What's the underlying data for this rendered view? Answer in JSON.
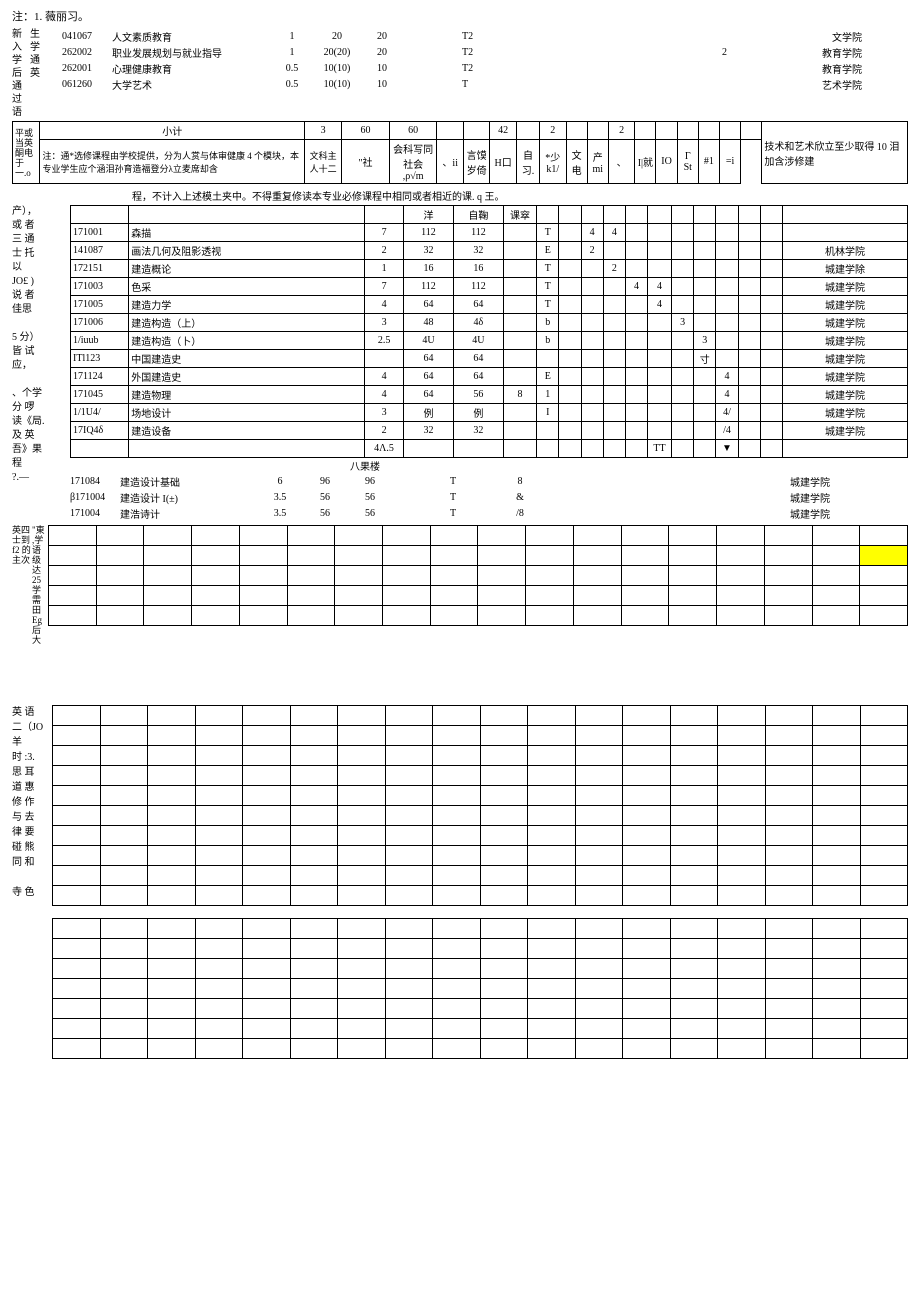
{
  "top_note": "注：1. 薇丽习。",
  "side_text_1": "新入学后通过语",
  "side_text_2": "生学通英",
  "loose_rows": [
    {
      "code": "041067",
      "name": "人文素质教育",
      "cr": "1",
      "h1": "20",
      "h2": "20",
      "exam": "T2",
      "extra": "",
      "dept": "文学院"
    },
    {
      "code": "262002",
      "name": "职业发展规划与就业指导",
      "cr": "1",
      "h1": "20(20)",
      "h2": "20",
      "exam": "T2",
      "extra": "2",
      "dept": "教育学院"
    },
    {
      "code": "262001",
      "name": "心理健康教育",
      "cr": "0.5",
      "h1": "10(10)",
      "h2": "10",
      "exam": "T2",
      "extra": "",
      "dept": "教育学院"
    },
    {
      "code": "061260",
      "name": "大学艺术",
      "cr": "0.5",
      "h1": "10(10)",
      "h2": "10",
      "exam": "T",
      "extra": "",
      "dept": "艺术学院"
    }
  ],
  "subtotal_row": {
    "left_vert": "平或当英 酮电于一.o",
    "label": "小计",
    "cr": "3",
    "h1": "60",
    "h2": "60",
    "n1": "42",
    "n2": "2",
    "n3": "2",
    "note": "注：通*选修课程由学校提供，分为人赏与体审健康 4 个模块，本专业学生应个涵泪孙育造福登分λ立麦席却含",
    "sub": "文科主人十二",
    "cols": [
      "\"社",
      "会科写同社会 ,ρ√m",
      "、ii",
      "言馍岁倚",
      "H口",
      "自习.",
      "*少k1/",
      "文电",
      "产mi",
      "、",
      "I|就",
      "IO",
      "Γ St",
      "#1",
      "=i"
    ],
    "right_note": "技术和艺术欣立至少取得 10 泪加含涉修建"
  },
  "mid_note": "程，不计入上述模土夹中。不得重复修读本专业必修课程中相同或者相近的课. q 王。",
  "left_stack_mid": [
    "产），",
    "或 者",
    "三 通",
    "士 托",
    "以",
    "JO£ )",
    "说 者",
    "佳思",
    "",
    "5 分）",
    "皆 试",
    "应，",
    "",
    "、个学",
    "分 啰",
    "读《局.",
    "及 英",
    "吾》果",
    "程",
    "?.—"
  ],
  "mid_header": [
    "",
    "洋",
    "自鞠",
    "课窣"
  ],
  "mid_rows": [
    {
      "code": "171001",
      "name": "森描",
      "cr": "7",
      "h1": "112",
      "h2": "112",
      "c": [
        "",
        "T",
        "",
        "4",
        "4",
        "",
        "",
        "",
        "",
        "",
        ""
      ],
      "dept": ""
    },
    {
      "code": "141087",
      "name": "画法几何及阻影透视",
      "cr": "2",
      "h1": "32",
      "h2": "32",
      "c": [
        "",
        "E",
        "",
        "2",
        "",
        "",
        "",
        "",
        "",
        "",
        ""
      ],
      "dept": "机林学院"
    },
    {
      "code": "172151",
      "name": "建造概论",
      "cr": "1",
      "h1": "16",
      "h2": "16",
      "c": [
        "",
        "T",
        "",
        "",
        "2",
        "",
        "",
        "",
        "",
        "",
        ""
      ],
      "dept": "城建学除"
    },
    {
      "code": "171003",
      "name": "色采",
      "cr": "7",
      "h1": "112",
      "h2": "112",
      "c": [
        "",
        "T",
        "",
        "",
        "",
        "4",
        "4",
        "",
        "",
        "",
        ""
      ],
      "dept": "城建学院"
    },
    {
      "code": "171005",
      "name": "建造力学",
      "cr": "4",
      "h1": "64",
      "h2": "64",
      "c": [
        "",
        "T",
        "",
        "",
        "",
        "",
        "4",
        "",
        "",
        "",
        ""
      ],
      "dept": "城建学院"
    },
    {
      "code": "171006",
      "name": "建造构造（上）",
      "cr": "3",
      "h1": "48",
      "h2": "4δ",
      "c": [
        "",
        "b",
        "",
        "",
        "",
        "",
        "",
        "3",
        "",
        "",
        ""
      ],
      "dept": "城建学院"
    },
    {
      "code": "1/iuub",
      "name": "建造构造（卜）",
      "cr": "2.5",
      "h1": "4U",
      "h2": "4U",
      "c": [
        "",
        "b",
        "",
        "",
        "",
        "",
        "",
        "",
        "3",
        "",
        ""
      ],
      "dept": "城建学院"
    },
    {
      "code": "ITl123",
      "name": "中国建造史",
      "cr": "",
      "h1": "64",
      "h2": "64",
      "c": [
        "",
        "",
        "",
        "",
        "",
        "",
        "",
        "",
        "寸",
        "",
        ""
      ],
      "dept": "城建学院"
    },
    {
      "code": "171124",
      "name": "外国建造史",
      "cr": "4",
      "h1": "64",
      "h2": "64",
      "c": [
        "",
        "E",
        "",
        "",
        "",
        "",
        "",
        "",
        "",
        "4",
        ""
      ],
      "dept": "城建学院"
    },
    {
      "code": "171045",
      "name": "建造物理",
      "cr": "4",
      "h1": "64",
      "h2": "56",
      "c": [
        "8",
        "1",
        "",
        "",
        "",
        "",
        "",
        "",
        "",
        "4",
        ""
      ],
      "dept": "城建学院"
    },
    {
      "code": "1/1U4/",
      "name": "场地设计",
      "cr": "3",
      "h1": "例",
      "h2": "例",
      "c": [
        "",
        "I",
        "",
        "",
        "",
        "",
        "",
        "",
        "",
        "4/",
        ""
      ],
      "dept": "城建学院"
    },
    {
      "code": "17IQ4δ",
      "name": "建造设备",
      "cr": "2",
      "h1": "32",
      "h2": "32",
      "c": [
        "",
        "",
        "",
        "",
        "",
        "",
        "",
        "",
        "",
        "/4",
        ""
      ],
      "dept": "城建学院"
    }
  ],
  "mid_subtotal": {
    "cr": "4Λ.5",
    "c": [
      "",
      "",
      "",
      "",
      "",
      "TT",
      "",
      "",
      "▼",
      ""
    ]
  },
  "mid_burst": "八果楼",
  "mid_rows2": [
    {
      "code": "171084",
      "name": "建造设计基础",
      "cr": "6",
      "h1": "96",
      "h2": "96",
      "exam": "T",
      "x": "8",
      "dept": "城建学院"
    },
    {
      "code": "β171004",
      "name": "建造设计 I(±)",
      "cr": "3.5",
      "h1": "56",
      "h2": "56",
      "exam": "T",
      "x": "&",
      "dept": "城建学院"
    },
    {
      "code": "171004",
      "name": "建浩诗计",
      "cr": "3.5",
      "h1": "56",
      "h2": "56",
      "exam": "T",
      "x": "/8",
      "dept": "城建学院"
    }
  ],
  "vert_left_grid": "英四士到 f2 的主次",
  "vert_left_grid2": "\"東 ,学语级达 25 学需田 Eg 后大",
  "bottom_left_lines": [
    "英 语",
    "二（JO",
    "羊",
    "时 :3.",
    "思 耳",
    "道 惠",
    "修 作",
    "与 去",
    "律 要",
    "碰 熊",
    "同 和",
    "",
    "寺 色"
  ],
  "empty_grid_rows_1": 5,
  "empty_grid_rows_2": 10,
  "empty_grid_rows_3": 7
}
